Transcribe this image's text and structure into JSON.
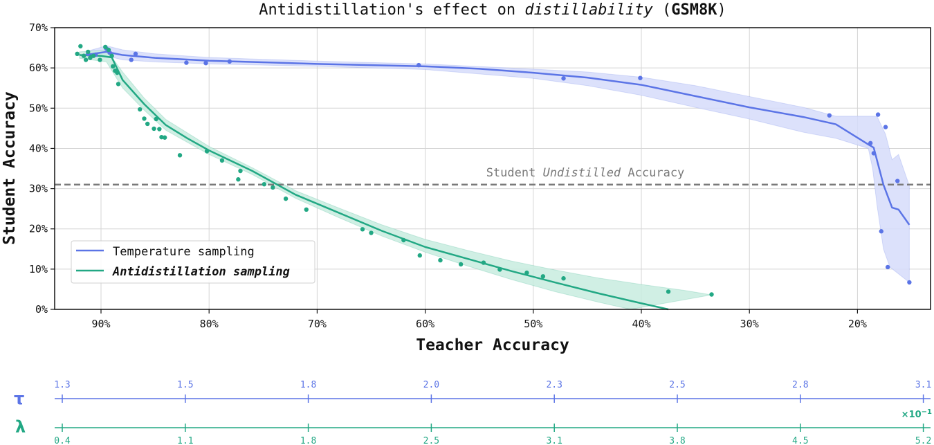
{
  "chart_data": {
    "type": "line",
    "title": "Antidistillation's effect on distillability (GSM8K)",
    "title_parts": {
      "prefix": "Antidistillation's effect on ",
      "italic": "distillability",
      "space": " (",
      "bold": "GSM8K",
      "suffix": ")"
    },
    "xlabel": "Teacher Accuracy",
    "ylabel": "Student Accuracy",
    "xlim": [
      94,
      14
    ],
    "ylim": [
      0,
      70
    ],
    "x_inverted": true,
    "grid": true,
    "xticks": [
      "90%",
      "80%",
      "70%",
      "60%",
      "50%",
      "40%",
      "30%",
      "20%"
    ],
    "yticks": [
      "0%",
      "10%",
      "20%",
      "30%",
      "40%",
      "50%",
      "60%",
      "70%"
    ],
    "legend": {
      "position": "lower left",
      "entries": [
        {
          "label": "Temperature sampling",
          "color": "#5b74e6",
          "italic_bold": false
        },
        {
          "label": "Antidistillation sampling",
          "color": "#22a884",
          "italic_bold": true
        }
      ]
    },
    "reference_line": {
      "label_prefix": "Student ",
      "label_italic": "Undistilled",
      "label_suffix": " Accuracy",
      "y": 31,
      "style": "dashed",
      "color": "#7a7a7a"
    },
    "series": [
      {
        "name": "Temperature sampling",
        "color": "#5b74e6",
        "fill_color": "#d6dcfa",
        "points": [
          [
            91.2,
            63.5
          ],
          [
            90.5,
            63.3
          ],
          [
            89.5,
            64.8
          ],
          [
            89.2,
            63.8
          ],
          [
            87.2,
            62.0
          ],
          [
            86.8,
            63.5
          ],
          [
            82.1,
            61.3
          ],
          [
            80.3,
            61.2
          ],
          [
            78.1,
            61.6
          ],
          [
            60.6,
            60.7
          ],
          [
            47.2,
            57.4
          ],
          [
            40.1,
            57.5
          ],
          [
            22.6,
            48.2
          ],
          [
            18.8,
            41.3
          ],
          [
            18.5,
            38.8
          ],
          [
            18.1,
            48.4
          ],
          [
            17.4,
            45.3
          ],
          [
            16.3,
            31.9
          ],
          [
            17.8,
            19.4
          ],
          [
            17.2,
            10.5
          ],
          [
            15.2,
            6.7
          ]
        ],
        "trend": [
          [
            91.5,
            63.2
          ],
          [
            89.5,
            64.0
          ],
          [
            88,
            63.2
          ],
          [
            85,
            62.5
          ],
          [
            80,
            61.8
          ],
          [
            75,
            61.4
          ],
          [
            70,
            61.0
          ],
          [
            65,
            60.7
          ],
          [
            60,
            60.4
          ],
          [
            55,
            59.8
          ],
          [
            50,
            58.8
          ],
          [
            45,
            57.6
          ],
          [
            40,
            55.8
          ],
          [
            35,
            53.0
          ],
          [
            30,
            50.2
          ],
          [
            25,
            47.8
          ],
          [
            22,
            46.0
          ],
          [
            19,
            41.0
          ],
          [
            18.5,
            40.2
          ],
          [
            17.6,
            31.0
          ],
          [
            16.8,
            25.3
          ],
          [
            16.2,
            24.8
          ],
          [
            15.2,
            21.0
          ]
        ],
        "band_upper": [
          [
            91.5,
            64.0
          ],
          [
            89.5,
            65.5
          ],
          [
            88,
            64.5
          ],
          [
            85,
            63.5
          ],
          [
            80,
            62.6
          ],
          [
            70,
            61.7
          ],
          [
            60,
            61.0
          ],
          [
            50,
            59.7
          ],
          [
            45,
            59.0
          ],
          [
            40,
            57.7
          ],
          [
            35,
            55.6
          ],
          [
            30,
            52.9
          ],
          [
            25,
            50.2
          ],
          [
            22,
            48.0
          ],
          [
            19.5,
            48.0
          ],
          [
            18.2,
            48.0
          ],
          [
            17.4,
            43.5
          ],
          [
            16.8,
            37.2
          ],
          [
            16.2,
            38.5
          ],
          [
            15.2,
            30.7
          ]
        ],
        "band_lower": [
          [
            91.5,
            62.0
          ],
          [
            89.5,
            63.0
          ],
          [
            88,
            62.0
          ],
          [
            85,
            61.5
          ],
          [
            80,
            61.0
          ],
          [
            70,
            60.4
          ],
          [
            60,
            59.6
          ],
          [
            50,
            57.4
          ],
          [
            45,
            55.6
          ],
          [
            40,
            53.2
          ],
          [
            35,
            50.2
          ],
          [
            30,
            47.3
          ],
          [
            25,
            44.0
          ],
          [
            22,
            42.5
          ],
          [
            19,
            40.0
          ],
          [
            18.6,
            35.0
          ],
          [
            18.2,
            26.0
          ],
          [
            17.6,
            15.0
          ],
          [
            17.0,
            10.5
          ],
          [
            15.2,
            6.7
          ]
        ]
      },
      {
        "name": "Antidistillation sampling",
        "color": "#22a884",
        "fill_color": "#c8ecdf",
        "points": [
          [
            92.2,
            63.5
          ],
          [
            91.9,
            65.4
          ],
          [
            91.6,
            63.0
          ],
          [
            91.4,
            62.0
          ],
          [
            91.2,
            64.0
          ],
          [
            91.0,
            62.5
          ],
          [
            90.7,
            63.0
          ],
          [
            90.1,
            62.0
          ],
          [
            89.6,
            65.2
          ],
          [
            89.3,
            64.5
          ],
          [
            89.0,
            63.0
          ],
          [
            88.9,
            60.4
          ],
          [
            88.7,
            59.3
          ],
          [
            88.5,
            58.8
          ],
          [
            88.4,
            56.0
          ],
          [
            86.4,
            49.7
          ],
          [
            86.0,
            47.4
          ],
          [
            85.7,
            46.1
          ],
          [
            85.1,
            44.9
          ],
          [
            84.9,
            47.3
          ],
          [
            84.6,
            44.8
          ],
          [
            84.4,
            42.8
          ],
          [
            84.1,
            42.7
          ],
          [
            82.7,
            38.3
          ],
          [
            80.2,
            39.3
          ],
          [
            78.8,
            37.0
          ],
          [
            77.3,
            32.3
          ],
          [
            77.1,
            34.4
          ],
          [
            74.9,
            31.1
          ],
          [
            74.1,
            30.3
          ],
          [
            72.9,
            27.5
          ],
          [
            71.0,
            24.8
          ],
          [
            65.8,
            19.9
          ],
          [
            65.0,
            19.0
          ],
          [
            62.0,
            17.2
          ],
          [
            60.5,
            13.4
          ],
          [
            58.6,
            12.2
          ],
          [
            56.7,
            11.2
          ],
          [
            54.6,
            11.6
          ],
          [
            53.1,
            9.9
          ],
          [
            50.6,
            9.1
          ],
          [
            49.1,
            8.2
          ],
          [
            47.2,
            7.7
          ],
          [
            37.5,
            4.4
          ],
          [
            33.5,
            3.7
          ]
        ],
        "trend": [
          [
            92,
            63.2
          ],
          [
            90,
            63.0
          ],
          [
            89,
            62.6
          ],
          [
            88,
            57.0
          ],
          [
            86,
            51.0
          ],
          [
            84,
            45.8
          ],
          [
            82,
            42.5
          ],
          [
            80,
            39.5
          ],
          [
            76,
            34.4
          ],
          [
            72,
            28.5
          ],
          [
            68,
            24.0
          ],
          [
            64,
            19.5
          ],
          [
            60,
            15.5
          ],
          [
            56,
            12.5
          ],
          [
            52,
            9.5
          ],
          [
            48,
            6.7
          ],
          [
            44,
            4.0
          ],
          [
            40,
            1.5
          ],
          [
            37.5,
            0.0
          ]
        ],
        "band_upper": [
          [
            92,
            64.0
          ],
          [
            89.5,
            64.5
          ],
          [
            88,
            59.0
          ],
          [
            86,
            52.5
          ],
          [
            84,
            47.2
          ],
          [
            80,
            40.5
          ],
          [
            76,
            35.2
          ],
          [
            72,
            29.5
          ],
          [
            68,
            25.2
          ],
          [
            64,
            21.0
          ],
          [
            60,
            17.4
          ],
          [
            56,
            14.6
          ],
          [
            52,
            12.0
          ],
          [
            48,
            9.8
          ],
          [
            44,
            7.8
          ],
          [
            40,
            6.2
          ],
          [
            36,
            4.7
          ],
          [
            33.5,
            3.6
          ]
        ],
        "band_lower": [
          [
            92,
            62.4
          ],
          [
            89.5,
            61.5
          ],
          [
            88,
            55.0
          ],
          [
            86,
            49.5
          ],
          [
            84,
            44.5
          ],
          [
            80,
            38.5
          ],
          [
            76,
            33.5
          ],
          [
            72,
            27.6
          ],
          [
            68,
            22.8
          ],
          [
            64,
            18.2
          ],
          [
            60,
            14.2
          ],
          [
            56,
            10.7
          ],
          [
            52,
            7.4
          ],
          [
            48,
            4.4
          ],
          [
            44,
            1.8
          ],
          [
            41,
            0.0
          ]
        ]
      }
    ]
  },
  "secondary_axes": [
    {
      "symbol": "τ",
      "name": "tau",
      "color": "#5b74e6",
      "tick_labels": [
        "1.3",
        "1.5",
        "1.8",
        "2.0",
        "2.3",
        "2.5",
        "2.8",
        "3.1"
      ],
      "label_position": "above"
    },
    {
      "symbol": "λ",
      "name": "lambda",
      "color": "#22a884",
      "tick_labels": [
        "0.4",
        "1.1",
        "1.8",
        "2.5",
        "3.1",
        "3.8",
        "4.5",
        "5.2"
      ],
      "label_position": "below",
      "multiplier_base": "×10",
      "multiplier_exp": "−1"
    }
  ]
}
